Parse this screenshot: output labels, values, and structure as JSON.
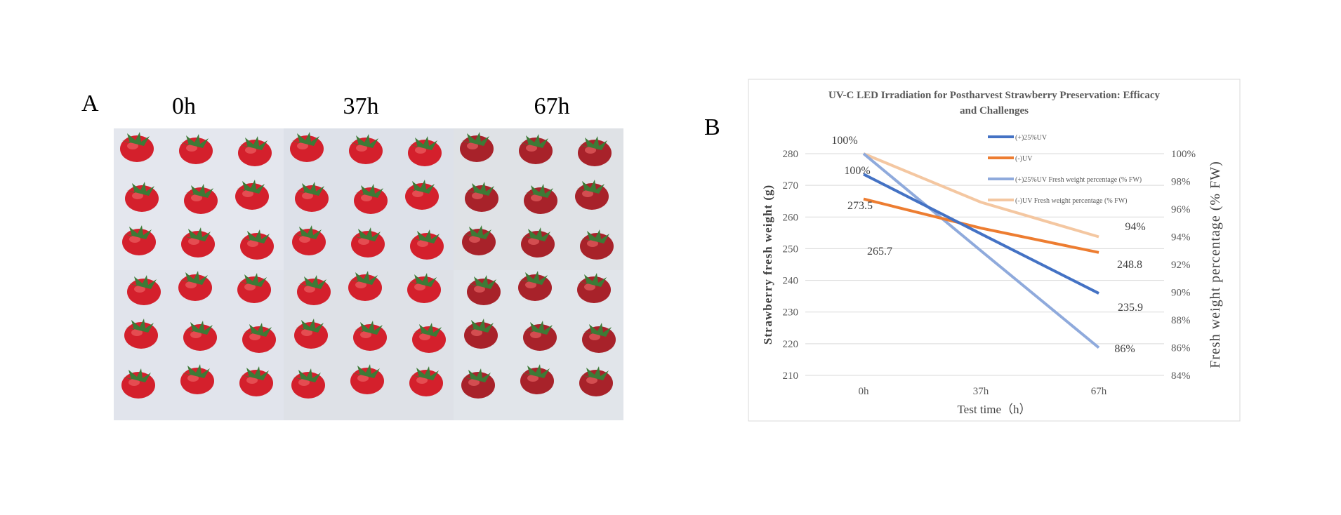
{
  "panel_a": {
    "label": "A",
    "time_labels": [
      "0h",
      "37h",
      "67h"
    ]
  },
  "panel_b": {
    "label": "B"
  },
  "chart_data": {
    "type": "line",
    "title_line1": "UV-C LED Irradiation for Postharvest Strawberry Preservation: Efficacy",
    "title_line2": "and Challenges",
    "categories": [
      "0h",
      "37h",
      "67h"
    ],
    "xlabel": "Test time（h）",
    "ylabel": "Strawberry fresh weight (g)",
    "y2label": "Fresh weight percentage (% FW)",
    "ylim": [
      210,
      280
    ],
    "yticks": [
      "280",
      "270",
      "260",
      "250",
      "240",
      "230",
      "220",
      "210"
    ],
    "y2lim": [
      84,
      100
    ],
    "y2ticks": [
      "100%",
      "98%",
      "96%",
      "94%",
      "92%",
      "90%",
      "88%",
      "86%",
      "84%"
    ],
    "grid": true,
    "legend_placement": "top-center",
    "series": [
      {
        "name": "(+)25%UV",
        "axis": "left",
        "color": "#4472c4",
        "values": [
          273.5,
          254.7,
          235.9
        ]
      },
      {
        "name": "(-)UV",
        "axis": "left",
        "color": "#ed7d31",
        "values": [
          265.7,
          256.5,
          248.8
        ]
      },
      {
        "name": "(+)25%UV  Fresh weight percentage (% FW)",
        "axis": "right",
        "color": "#8faadc",
        "values": [
          100,
          93,
          86
        ]
      },
      {
        "name": "(-)UV  Fresh weight percentage (% FW)",
        "axis": "right",
        "color": "#f4c7a1",
        "values": [
          100,
          96.5,
          94
        ]
      }
    ],
    "data_labels": [
      "100%",
      "100%",
      "273.5",
      "265.7",
      "94%",
      "248.8",
      "235.9",
      "86%"
    ]
  }
}
